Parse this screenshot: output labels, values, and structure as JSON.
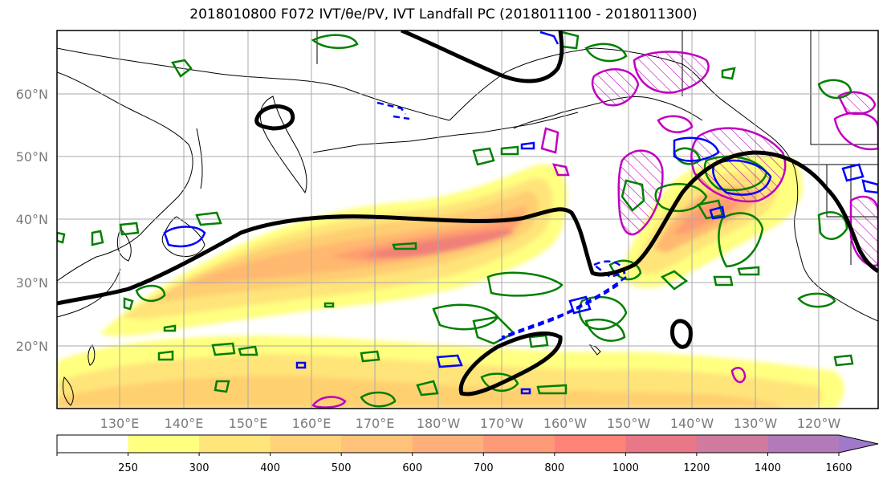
{
  "title": "2018010800 F072 IVT/θe/PV, IVT Landfall PC (2018011100 - 2018011300)",
  "map": {
    "lat_labels": [
      "60°N",
      "50°N",
      "40°N",
      "30°N",
      "20°N"
    ],
    "lon_labels": [
      "130°E",
      "140°E",
      "150°E",
      "160°E",
      "170°E",
      "180°W",
      "170°W",
      "160°W",
      "150°W",
      "140°W",
      "130°W",
      "120°W"
    ],
    "colors": {
      "ivt_shade": [
        "#ffff80",
        "#ffe57a",
        "#ffd070",
        "#ffb870",
        "#ff9c70",
        "#f08078",
        "#e07890",
        "#c07ab0",
        "#a878c8"
      ],
      "contour_black": "#000000",
      "contour_green": "#008000",
      "contour_blue": "#0000ff",
      "contour_magenta": "#c000c0"
    }
  },
  "colorbar": {
    "ticks": [
      "250",
      "300",
      "400",
      "500",
      "600",
      "700",
      "800",
      "1000",
      "1200",
      "1400",
      "1600"
    ],
    "colors": [
      "#ffffff",
      "#ffff80",
      "#ffe57a",
      "#ffd27a",
      "#ffc27a",
      "#ffb07a",
      "#ff9a78",
      "#ff8478",
      "#e87888",
      "#d07aa0",
      "#b27ab8",
      "#a07ac8"
    ]
  }
}
